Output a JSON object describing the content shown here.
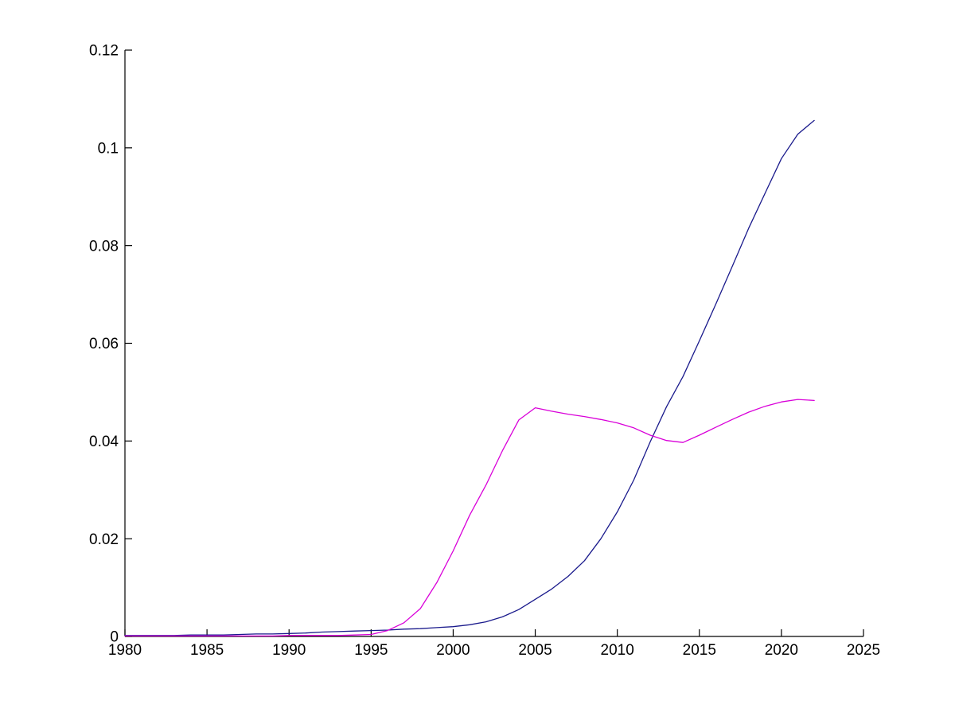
{
  "figure": {
    "background_color": "#ffffff",
    "axis_color": "#000000",
    "tick_label_color": "#000000"
  },
  "chart_data": {
    "type": "line",
    "title": "",
    "xlabel": "",
    "ylabel": "",
    "xlim": [
      1980,
      2025
    ],
    "ylim": [
      0,
      0.12
    ],
    "grid": false,
    "box": false,
    "legend": "none",
    "tick_direction": "in",
    "x_ticks": [
      1980,
      1985,
      1990,
      1995,
      2000,
      2005,
      2010,
      2015,
      2020,
      2025
    ],
    "x_tick_labels": [
      "1980",
      "1985",
      "1990",
      "1995",
      "2000",
      "2005",
      "2010",
      "2015",
      "2020",
      "2025"
    ],
    "y_ticks": [
      0,
      0.02,
      0.04,
      0.06,
      0.08,
      0.1,
      0.12
    ],
    "y_tick_labels": [
      "0",
      "0.02",
      "0.04",
      "0.06",
      "0.08",
      "0.1",
      "0.12"
    ],
    "x": [
      1980,
      1981,
      1982,
      1983,
      1984,
      1985,
      1986,
      1987,
      1988,
      1989,
      1990,
      1991,
      1992,
      1993,
      1994,
      1995,
      1996,
      1997,
      1998,
      1999,
      2000,
      2001,
      2002,
      2003,
      2004,
      2005,
      2006,
      2007,
      2008,
      2009,
      2010,
      2011,
      2012,
      2013,
      2014,
      2015,
      2016,
      2017,
      2018,
      2019,
      2020,
      2021,
      2022
    ],
    "series": [
      {
        "name": "navy-line",
        "color": "#1a1a8c",
        "values": [
          0.0002,
          0.0002,
          0.0002,
          0.0002,
          0.0003,
          0.0003,
          0.0003,
          0.0004,
          0.0005,
          0.0005,
          0.0006,
          0.0007,
          0.0009,
          0.001,
          0.0011,
          0.0012,
          0.0013,
          0.0015,
          0.0016,
          0.0018,
          0.002,
          0.0024,
          0.003,
          0.004,
          0.0055,
          0.0076,
          0.0097,
          0.0123,
          0.0155,
          0.02,
          0.0255,
          0.032,
          0.0398,
          0.047,
          0.0532,
          0.0605,
          0.068,
          0.0757,
          0.0835,
          0.0907,
          0.0978,
          0.1028,
          0.1056
        ]
      },
      {
        "name": "magenta-line",
        "color": "#d900d9",
        "values": [
          0.0001,
          0.0001,
          0.0001,
          0.0001,
          0.0001,
          0.0001,
          0.0001,
          0.0001,
          0.0001,
          0.0001,
          0.0002,
          0.0002,
          0.0002,
          0.0002,
          0.0003,
          0.0004,
          0.0012,
          0.0028,
          0.0057,
          0.011,
          0.0175,
          0.0248,
          0.031,
          0.038,
          0.0443,
          0.0468,
          0.0461,
          0.0455,
          0.045,
          0.0444,
          0.0437,
          0.0427,
          0.0412,
          0.0401,
          0.0397,
          0.0412,
          0.0428,
          0.0444,
          0.0459,
          0.0471,
          0.048,
          0.0485,
          0.0483
        ]
      }
    ]
  }
}
